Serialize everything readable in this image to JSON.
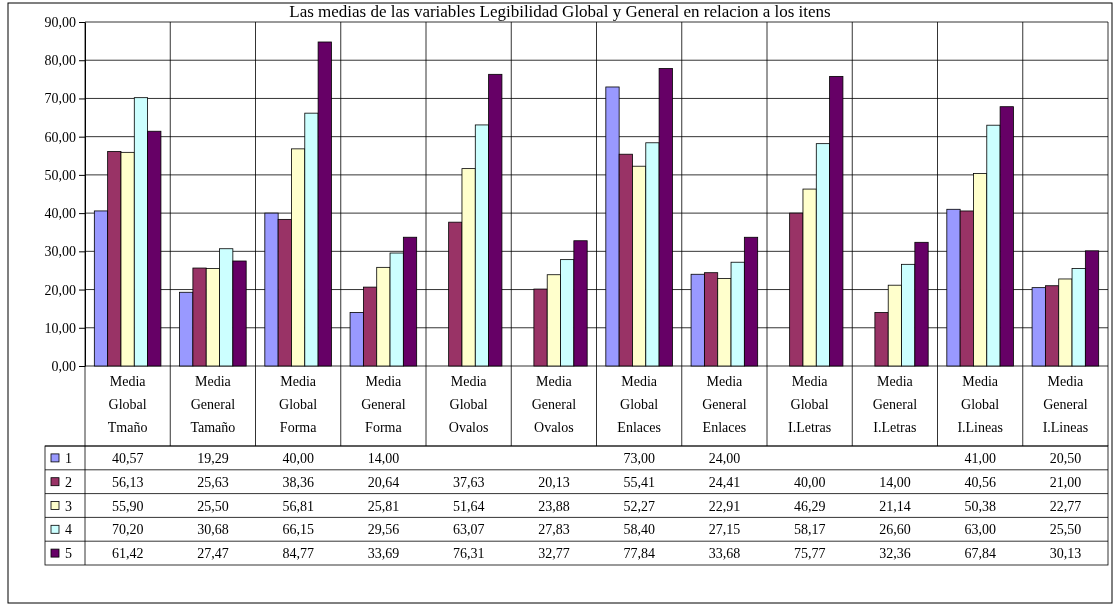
{
  "chart_data": {
    "type": "bar",
    "title": "Las medias de las variables Legibilidad Global y General en relacion a los itens",
    "categories": [
      "Media Global Tmaño",
      "Media General Tamaño",
      "Media Global Forma",
      "Media General Forma",
      "Media Global Ovalos",
      "Media General Ovalos",
      "Media Global Enlaces",
      "Media General Enlaces",
      "Media Global I.Letras",
      "Media General I.Letras",
      "Media Global I.Lineas",
      "Media General I.Lineas"
    ],
    "ylim": [
      0,
      90
    ],
    "yticks": [
      {
        "value": 0,
        "label": "0,00"
      },
      {
        "value": 10,
        "label": "10,00"
      },
      {
        "value": 20,
        "label": "20,00"
      },
      {
        "value": 30,
        "label": "30,00"
      },
      {
        "value": 40,
        "label": "40,00"
      },
      {
        "value": 50,
        "label": "50,00"
      },
      {
        "value": 60,
        "label": "60,00"
      },
      {
        "value": 70,
        "label": "70,00"
      },
      {
        "value": 80,
        "label": "80,00"
      },
      {
        "value": 90,
        "label": "90,00"
      }
    ],
    "grid": "y",
    "legend": "bottom left",
    "series": [
      {
        "name": "1",
        "color": "#9999ff",
        "values": [
          40.57,
          19.29,
          40.0,
          14.0,
          null,
          null,
          73.0,
          24.0,
          null,
          null,
          41.0,
          20.5
        ],
        "value_labels": [
          "40,57",
          "19,29",
          "40,00",
          "14,00",
          null,
          null,
          "73,00",
          "24,00",
          null,
          null,
          "41,00",
          "20,50"
        ]
      },
      {
        "name": "2",
        "color": "#993366",
        "values": [
          56.13,
          25.63,
          38.36,
          20.64,
          37.63,
          20.13,
          55.41,
          24.41,
          40.0,
          14.0,
          40.56,
          21.0
        ],
        "value_labels": [
          "56,13",
          "25,63",
          "38,36",
          "20,64",
          "37,63",
          "20,13",
          "55,41",
          "24,41",
          "40,00",
          "14,00",
          "40,56",
          "21,00"
        ]
      },
      {
        "name": "3",
        "color": "#ffffcc",
        "values": [
          55.9,
          25.5,
          56.81,
          25.81,
          51.64,
          23.88,
          52.27,
          22.91,
          46.29,
          21.14,
          50.38,
          22.77
        ],
        "value_labels": [
          "55,90",
          "25,50",
          "56,81",
          "25,81",
          "51,64",
          "23,88",
          "52,27",
          "22,91",
          "46,29",
          "21,14",
          "50,38",
          "22,77"
        ]
      },
      {
        "name": "4",
        "color": "#ccffff",
        "values": [
          70.2,
          30.68,
          66.15,
          29.56,
          63.07,
          27.83,
          58.4,
          27.15,
          58.17,
          26.6,
          63.0,
          25.5
        ],
        "value_labels": [
          "70,20",
          "30,68",
          "66,15",
          "29,56",
          "63,07",
          "27,83",
          "58,40",
          "27,15",
          "58,17",
          "26,60",
          "63,00",
          "25,50"
        ]
      },
      {
        "name": "5",
        "color": "#660066",
        "values": [
          61.42,
          27.47,
          84.77,
          33.69,
          76.31,
          32.77,
          77.84,
          33.68,
          75.77,
          32.36,
          67.84,
          30.13
        ],
        "value_labels": [
          "61,42",
          "27,47",
          "84,77",
          "33,69",
          "76,31",
          "32,77",
          "77,84",
          "33,68",
          "75,77",
          "32,36",
          "67,84",
          "30,13"
        ]
      }
    ]
  }
}
